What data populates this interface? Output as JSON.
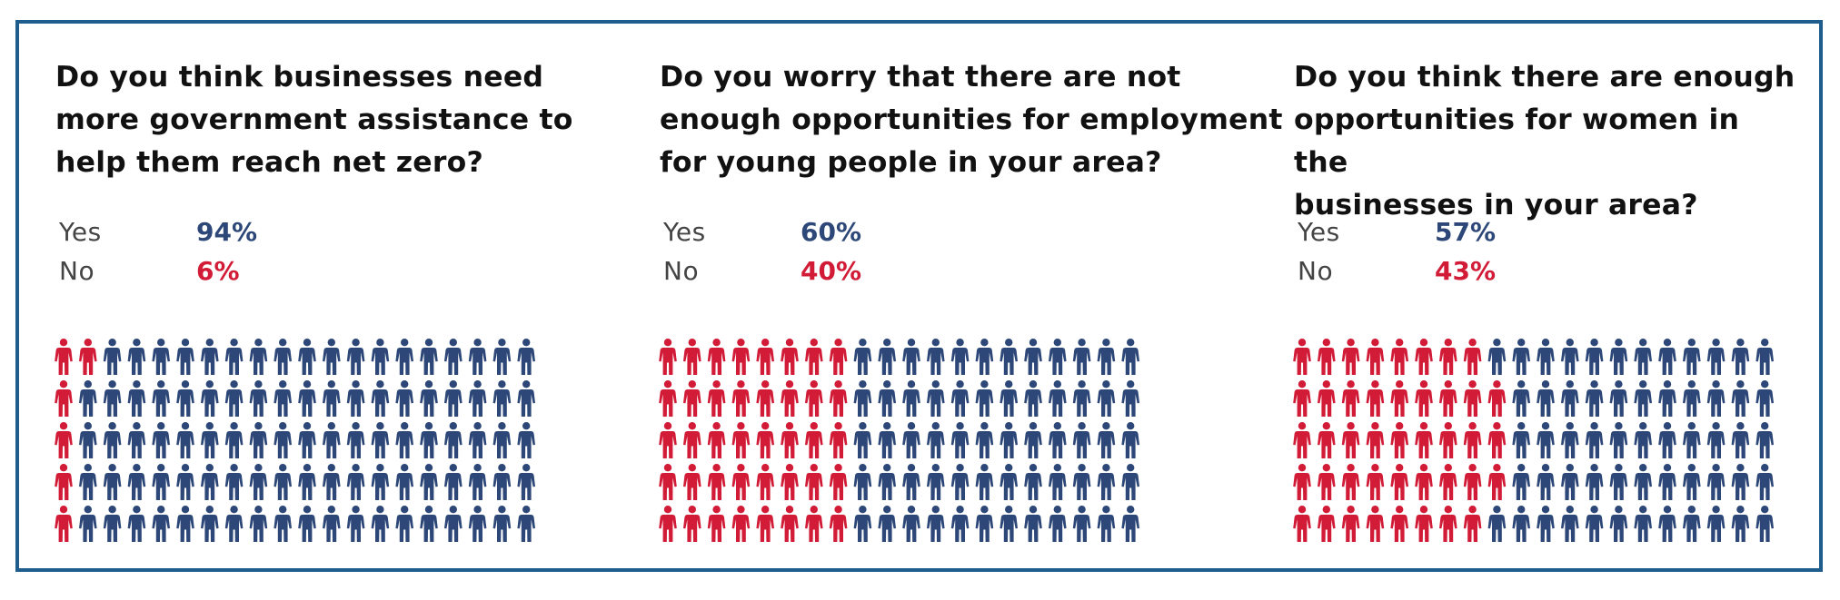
{
  "colors": {
    "yes": "#2d4878",
    "no": "#d21b36",
    "frame": "#1f5e8c"
  },
  "chart_data": [
    {
      "type": "pictogram",
      "title": "Do you think businesses need more government assistance to help them reach net zero?",
      "title_lines": [
        "Do you think businesses need",
        "more government assistance to",
        "help them reach net zero?"
      ],
      "categories": [
        "Yes",
        "No"
      ],
      "values": [
        94,
        6
      ],
      "value_labels": [
        "94%",
        "6%"
      ],
      "grid": {
        "rows": 5,
        "cols": 20
      },
      "no_counts_per_row": [
        2,
        1,
        1,
        1,
        1
      ]
    },
    {
      "type": "pictogram",
      "title": "Do you worry that there are not enough opportunities for employment for young people in your area?",
      "title_lines": [
        "Do you worry that there are not",
        "enough opportunities for employment",
        "for young people in your area?"
      ],
      "categories": [
        "Yes",
        "No"
      ],
      "values": [
        60,
        40
      ],
      "value_labels": [
        "60%",
        "40%"
      ],
      "grid": {
        "rows": 5,
        "cols": 20
      },
      "no_counts_per_row": [
        8,
        8,
        8,
        8,
        8
      ]
    },
    {
      "type": "pictogram",
      "title": "Do you think there are enough opportunities for women in the businesses in your area?",
      "title_lines": [
        "Do you think there are enough",
        "opportunities for women in the",
        "businesses in your area?"
      ],
      "categories": [
        "Yes",
        "No"
      ],
      "values": [
        57,
        43
      ],
      "value_labels": [
        "57%",
        "43%"
      ],
      "grid": {
        "rows": 5,
        "cols": 20
      },
      "no_counts_per_row": [
        8,
        9,
        9,
        9,
        8
      ]
    }
  ]
}
